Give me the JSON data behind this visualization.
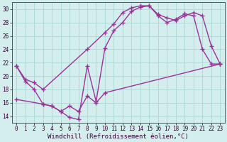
{
  "background_color": "#d4eeed",
  "grid_color": "#a8d8d4",
  "line_color": "#993399",
  "marker": "+",
  "markersize": 5,
  "linewidth": 1.0,
  "xlabel": "Windchill (Refroidissement éolien,°C)",
  "xlabel_fontsize": 6.5,
  "tick_fontsize": 5.5,
  "xlim": [
    -0.5,
    23.5
  ],
  "ylim": [
    13,
    31
  ],
  "yticks": [
    14,
    16,
    18,
    20,
    22,
    24,
    26,
    28,
    30
  ],
  "xticks": [
    0,
    1,
    2,
    3,
    4,
    5,
    6,
    7,
    8,
    9,
    10,
    11,
    12,
    13,
    14,
    15,
    16,
    17,
    18,
    19,
    20,
    21,
    22,
    23
  ],
  "line1_x": [
    0,
    1,
    2,
    3,
    4,
    5,
    6,
    7,
    8,
    9,
    10,
    11,
    12,
    13,
    14,
    15,
    16,
    17,
    18,
    19,
    20,
    21,
    22,
    23
  ],
  "line1_y": [
    21.5,
    19.2,
    18.0,
    15.8,
    15.5,
    14.7,
    13.8,
    13.5,
    21.5,
    16.2,
    24.2,
    26.8,
    28.0,
    29.7,
    30.3,
    30.5,
    29.2,
    28.7,
    28.3,
    29.0,
    29.5,
    29.0,
    24.5,
    21.8
  ],
  "line2_x": [
    0,
    1,
    2,
    3,
    8,
    10,
    11,
    12,
    13,
    14,
    15,
    16,
    17,
    18,
    19,
    20,
    21,
    22,
    23
  ],
  "line2_y": [
    21.5,
    19.5,
    19.0,
    18.0,
    24.0,
    26.5,
    27.8,
    29.5,
    30.2,
    30.5,
    30.5,
    29.0,
    28.0,
    28.5,
    29.3,
    29.0,
    24.0,
    21.8,
    21.8
  ],
  "line3_x": [
    0,
    3,
    4,
    5,
    6,
    7,
    8,
    9,
    10,
    23
  ],
  "line3_y": [
    16.5,
    15.8,
    15.5,
    14.7,
    15.5,
    14.7,
    17.0,
    16.0,
    17.5,
    21.8
  ]
}
